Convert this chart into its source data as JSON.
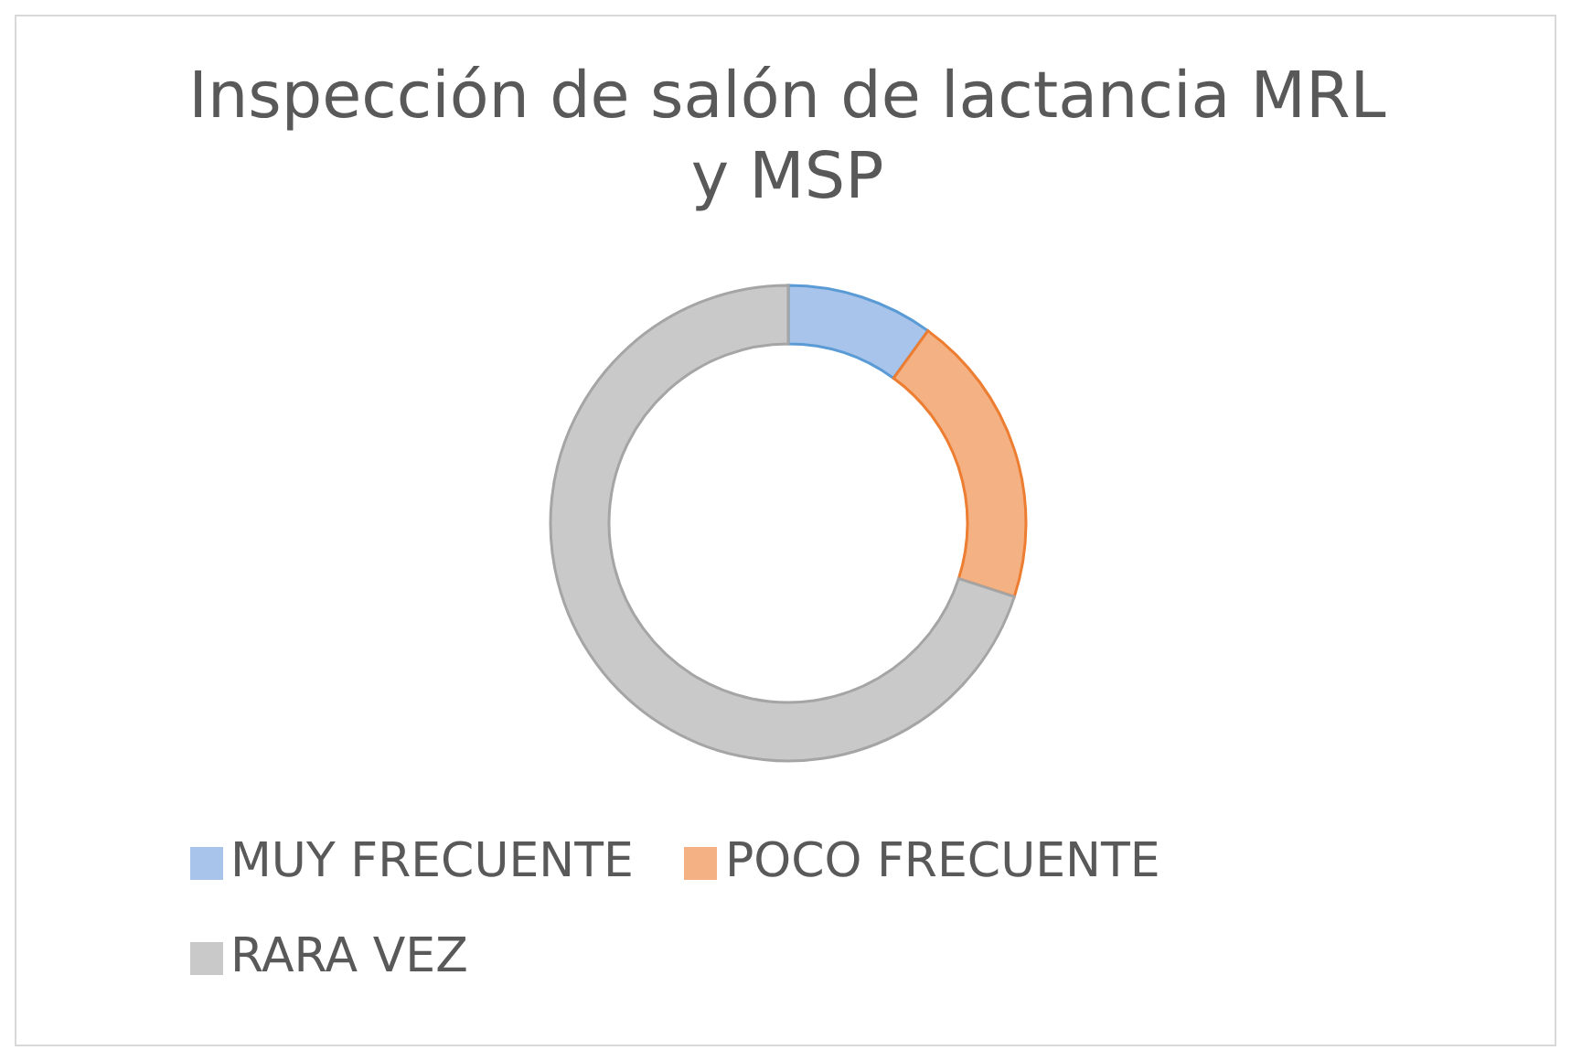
{
  "chart_data": {
    "type": "donut",
    "title": "Inspección  de salón de lactancia MRL y MSP",
    "categories": [
      "MUY FRECUENTE",
      "POCO FRECUENTE",
      "RARA VEZ"
    ],
    "values": [
      10,
      20,
      70
    ],
    "colors": [
      "#a9c4eb",
      "#f4b183",
      "#c9c9c9"
    ],
    "legend": "bottom"
  }
}
